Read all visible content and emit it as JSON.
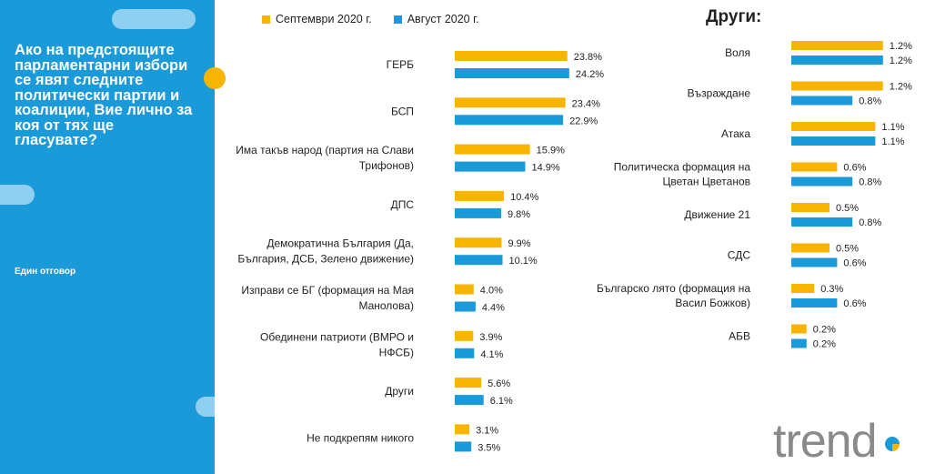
{
  "sidebar": {
    "question": "Ако на предстоящите парламентарни избори се явят следните политически партии и коалиции, Вие лично за коя от тях ще гласувате?",
    "answer_type": "Един отговор"
  },
  "legend": {
    "series_1": "Септември 2020 г.",
    "series_2": "Август 2020 г."
  },
  "colors": {
    "september": "#f7b500",
    "august": "#1a9ad9",
    "sidebar": "#1a9ad9"
  },
  "logo": {
    "text": "trend"
  },
  "chart_data": [
    {
      "type": "bar",
      "orientation": "horizontal",
      "title": "",
      "categories": [
        [
          "ГЕРБ"
        ],
        [
          "БСП"
        ],
        [
          "Има такъв народ (партия на Слави",
          "Трифонов)"
        ],
        [
          "ДПС"
        ],
        [
          "Демократична България (Да,",
          "България, ДСБ, Зелено движение)"
        ],
        [
          "Изправи се БГ (формация на Мая",
          "Манолова)"
        ],
        [
          "Обединени патриоти (ВМРО и",
          "НФСБ)"
        ],
        [
          "Други"
        ],
        [
          "Не подкрепям никого"
        ]
      ],
      "series": [
        {
          "name": "Септември 2020 г.",
          "values": [
            23.8,
            23.4,
            15.9,
            10.4,
            9.9,
            4.0,
            3.9,
            5.6,
            3.1
          ]
        },
        {
          "name": "Август 2020 г.",
          "values": [
            24.2,
            22.9,
            14.9,
            9.8,
            10.1,
            4.4,
            4.1,
            6.1,
            3.5
          ]
        }
      ],
      "value_suffix": "%"
    },
    {
      "type": "bar",
      "orientation": "horizontal",
      "title": "Други:",
      "categories": [
        [
          "Воля"
        ],
        [
          "Възраждане"
        ],
        [
          "Атака"
        ],
        [
          "Политическа формация на",
          "Цветан Цветанов"
        ],
        [
          "Движение 21"
        ],
        [
          "СДС"
        ],
        [
          "Българско лято (формация на",
          "Васил Божков)"
        ],
        [
          "АБВ"
        ]
      ],
      "series": [
        {
          "name": "Септември 2020 г.",
          "values": [
            1.2,
            1.2,
            1.1,
            0.6,
            0.5,
            0.5,
            0.3,
            0.2
          ]
        },
        {
          "name": "Август 2020 г.",
          "values": [
            1.2,
            0.8,
            1.1,
            0.8,
            0.8,
            0.6,
            0.6,
            0.2
          ]
        }
      ],
      "value_suffix": "%"
    }
  ]
}
